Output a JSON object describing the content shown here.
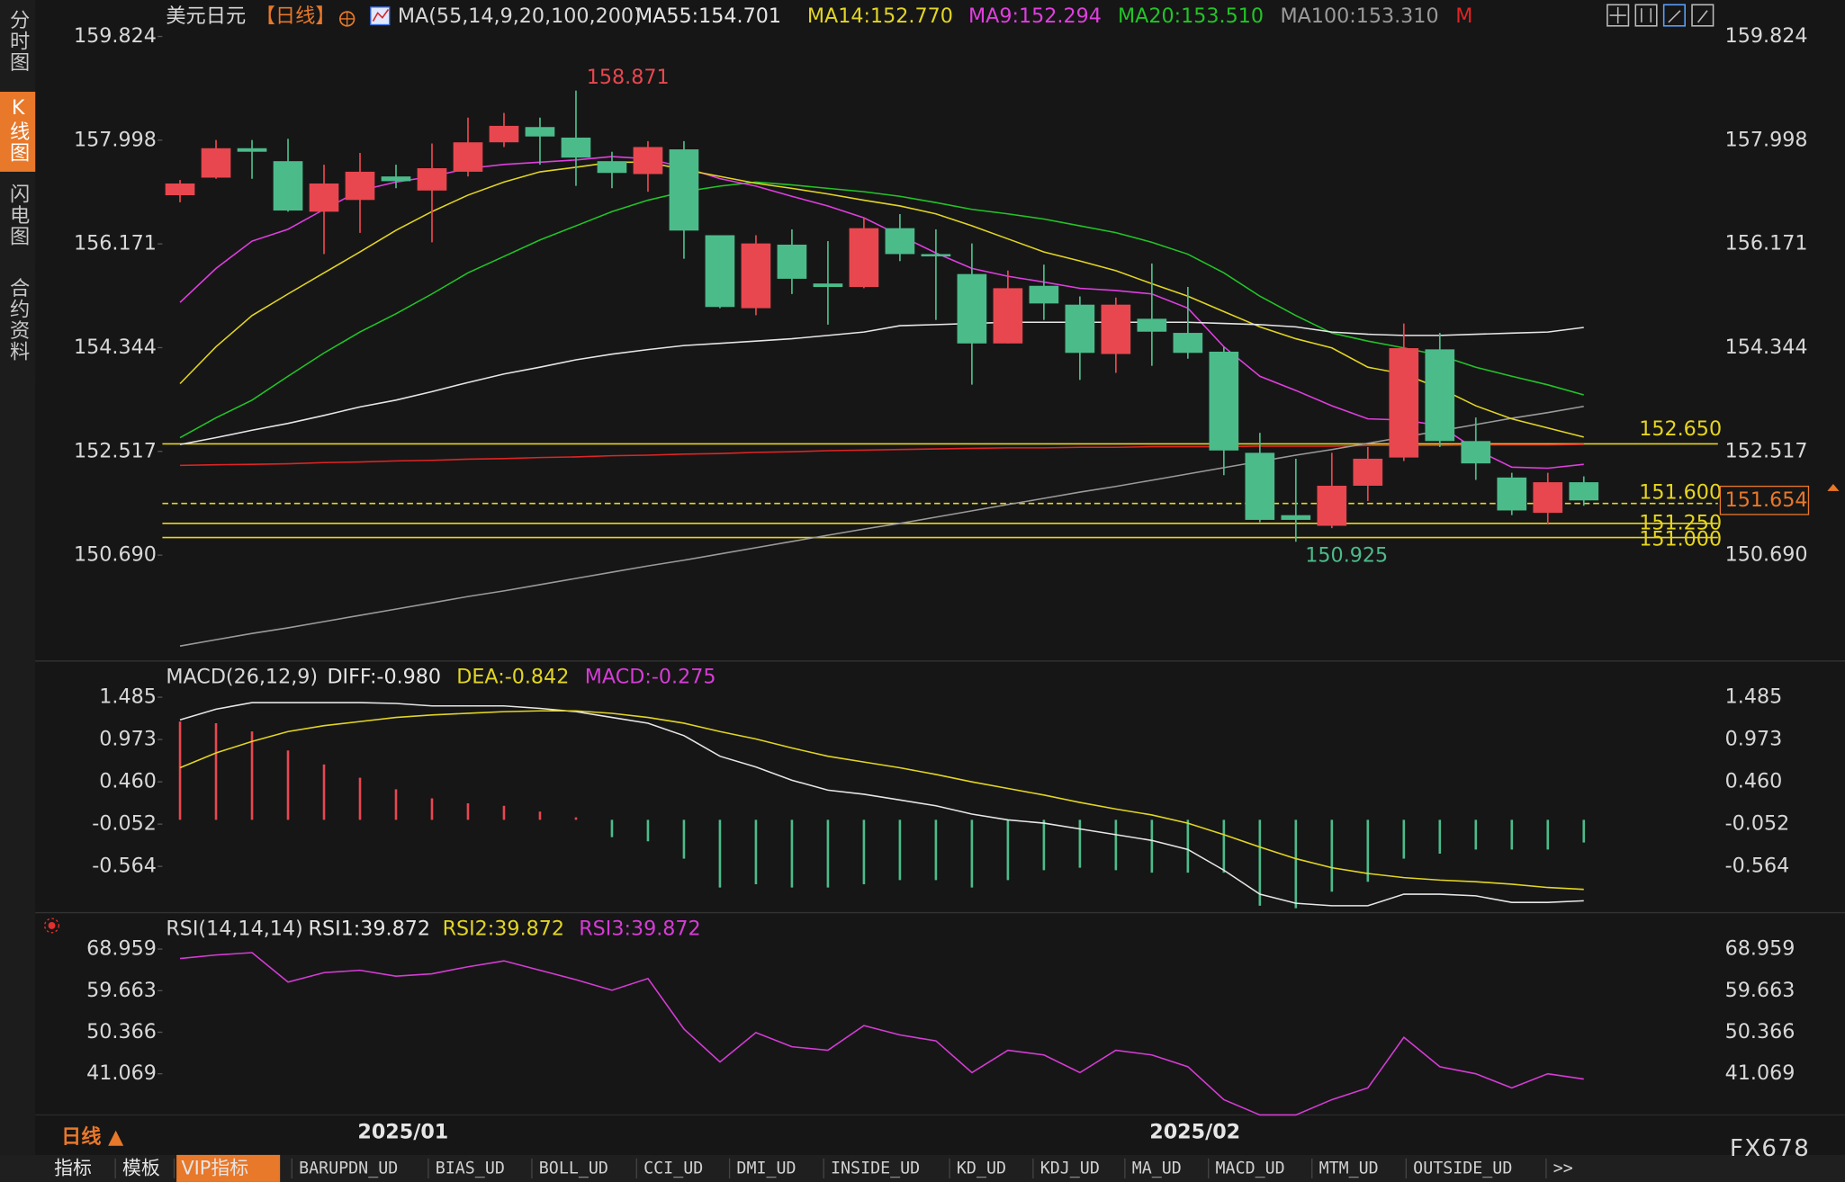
{
  "ui": {
    "tabs": [
      "分时图",
      "K线图",
      "闪电图",
      "合约资料"
    ],
    "active_tab": 1,
    "toolbar": [
      "指标",
      "模板",
      "VIP指标",
      "BARUPDN_UD",
      "BIAS_UD",
      "BOLL_UD",
      "CCI_UD",
      "DMI_UD",
      "INSIDE_UD",
      "KD_UD",
      "KDJ_UD",
      "MA_UD",
      "MACD_UD",
      "MTM_UD",
      "OUTSIDE_UD",
      ">>"
    ],
    "active_toolbar": 2,
    "timeframe": "日线 ▲",
    "watermark": "FX678"
  },
  "chart_data": [
    {
      "type": "candlestick",
      "title": "美元日元",
      "subtitle": "【日线】",
      "indicator": "MA(55,14,9,20,100,200)",
      "categories": [
        null,
        null,
        null,
        null,
        null,
        null,
        "2025/01",
        null,
        null,
        null,
        null,
        null,
        null,
        null,
        null,
        null,
        null,
        null,
        null,
        null,
        null,
        null,
        null,
        null,
        null,
        null,
        null,
        null,
        "2025/02",
        null,
        null,
        null,
        null,
        null,
        null,
        null,
        null,
        null,
        null,
        null
      ],
      "up_color": "#e8474f",
      "down_color": "#4cbb8a",
      "candles": {
        "open": [
          157.028,
          157.338,
          157.856,
          157.628,
          156.738,
          156.945,
          157.359,
          157.111,
          157.442,
          157.96,
          158.229,
          158.043,
          157.628,
          157.401,
          157.836,
          156.324,
          155.039,
          156.158,
          155.474,
          155.412,
          156.448,
          155.992,
          155.64,
          154.418,
          155.433,
          155.101,
          154.232,
          154.853,
          154.604,
          154.273,
          152.492,
          151.394,
          151.207,
          151.912,
          152.409,
          154.314,
          152.699,
          152.057,
          151.435,
          151.974
        ],
        "high": [
          157.297,
          158.001,
          158.001,
          158.022,
          157.566,
          157.773,
          157.566,
          157.939,
          158.395,
          158.478,
          158.395,
          158.871,
          157.794,
          157.981,
          157.981,
          156.324,
          156.324,
          156.427,
          156.22,
          156.634,
          156.696,
          156.427,
          156.179,
          155.702,
          155.806,
          155.246,
          155.226,
          155.826,
          155.412,
          154.356,
          152.844,
          152.388,
          152.492,
          152.595,
          154.77,
          154.604,
          153.113,
          152.14,
          152.14,
          152.077
        ],
        "low": [
          156.904,
          157.318,
          157.318,
          156.738,
          155.992,
          156.365,
          157.152,
          156.199,
          157.359,
          157.877,
          157.566,
          157.193,
          157.152,
          157.09,
          155.909,
          155.039,
          154.915,
          155.288,
          154.749,
          155.391,
          155.868,
          154.832,
          153.693,
          154.418,
          154.832,
          153.776,
          153.9,
          154.024,
          154.149,
          152.098,
          151.27,
          150.925,
          151.166,
          151.642,
          152.347,
          152.595,
          152.015,
          151.394,
          151.228,
          151.56
        ],
        "close": [
          157.235,
          157.856,
          157.794,
          156.759,
          157.235,
          157.442,
          157.276,
          157.504,
          157.96,
          158.25,
          158.063,
          157.691,
          157.421,
          157.877,
          156.406,
          155.06,
          156.179,
          155.557,
          155.412,
          156.448,
          155.992,
          155.951,
          154.418,
          155.391,
          155.122,
          154.252,
          155.101,
          154.625,
          154.252,
          152.533,
          151.311,
          151.311,
          151.912,
          152.388,
          154.335,
          152.699,
          152.305,
          151.477,
          151.974,
          151.654
        ]
      },
      "series": [
        {
          "name": "MA55",
          "legend_label": "MA55:154.701",
          "color": "#e6e6e6",
          "values": [
            152.64,
            152.76,
            152.89,
            153.01,
            153.15,
            153.3,
            153.42,
            153.57,
            153.73,
            153.88,
            154.0,
            154.13,
            154.23,
            154.31,
            154.38,
            154.42,
            154.46,
            154.5,
            154.56,
            154.62,
            154.73,
            154.75,
            154.77,
            154.79,
            154.79,
            154.79,
            154.79,
            154.79,
            154.79,
            154.77,
            154.75,
            154.71,
            154.62,
            154.58,
            154.56,
            154.56,
            154.58,
            154.6,
            154.62,
            154.7
          ]
        },
        {
          "name": "MA14",
          "legend_label": "MA14:152.770",
          "color": "#e2d523",
          "values": [
            153.71,
            154.36,
            154.91,
            155.29,
            155.66,
            156.03,
            156.41,
            156.74,
            157.03,
            157.26,
            157.44,
            157.52,
            157.61,
            157.61,
            157.48,
            157.36,
            157.24,
            157.15,
            157.05,
            156.94,
            156.84,
            156.7,
            156.49,
            156.26,
            156.03,
            155.87,
            155.7,
            155.47,
            155.25,
            154.98,
            154.71,
            154.5,
            154.34,
            154.0,
            153.88,
            153.63,
            153.32,
            153.09,
            152.93,
            152.77
          ]
        },
        {
          "name": "MA9",
          "legend_label": "MA9:152.294",
          "color": "#e03ee0",
          "values": [
            155.14,
            155.74,
            156.22,
            156.43,
            156.78,
            157.11,
            157.26,
            157.36,
            157.5,
            157.57,
            157.61,
            157.65,
            157.71,
            157.67,
            157.52,
            157.32,
            157.19,
            157.01,
            156.84,
            156.63,
            156.32,
            156.01,
            155.74,
            155.6,
            155.5,
            155.39,
            155.35,
            155.29,
            155.04,
            154.36,
            153.84,
            153.59,
            153.32,
            153.09,
            153.07,
            152.97,
            152.55,
            152.24,
            152.22,
            152.29
          ]
        },
        {
          "name": "MA20",
          "legend_label": "MA20:153.510",
          "color": "#22c427",
          "values": [
            152.76,
            153.11,
            153.42,
            153.84,
            154.25,
            154.62,
            154.94,
            155.29,
            155.66,
            155.95,
            156.24,
            156.49,
            156.74,
            156.94,
            157.09,
            157.19,
            157.26,
            157.21,
            157.15,
            157.09,
            157.01,
            156.9,
            156.78,
            156.7,
            156.61,
            156.49,
            156.37,
            156.2,
            155.99,
            155.66,
            155.25,
            154.91,
            154.6,
            154.46,
            154.34,
            154.21,
            154.0,
            153.84,
            153.69,
            153.51
          ]
        },
        {
          "name": "MA100",
          "legend_label": "MA100:153.310",
          "color": "#9a9a9a",
          "values": [
            149.09,
            149.2,
            149.31,
            149.41,
            149.52,
            149.63,
            149.74,
            149.85,
            149.96,
            150.06,
            150.17,
            150.28,
            150.39,
            150.5,
            150.6,
            150.71,
            150.82,
            150.93,
            151.04,
            151.15,
            151.25,
            151.36,
            151.47,
            151.58,
            151.69,
            151.8,
            151.9,
            152.01,
            152.12,
            152.23,
            152.34,
            152.45,
            152.55,
            152.66,
            152.77,
            152.88,
            152.99,
            153.1,
            153.2,
            153.31
          ]
        },
        {
          "name": "M",
          "legend_label": "M",
          "color": "#e02424",
          "values": [
            152.27,
            152.28,
            152.29,
            152.3,
            152.32,
            152.33,
            152.35,
            152.36,
            152.38,
            152.39,
            152.41,
            152.42,
            152.44,
            152.45,
            152.47,
            152.48,
            152.5,
            152.51,
            152.53,
            152.54,
            152.55,
            152.56,
            152.57,
            152.58,
            152.58,
            152.59,
            152.59,
            152.6,
            152.6,
            152.6,
            152.61,
            152.61,
            152.61,
            152.62,
            152.62,
            152.62,
            152.63,
            152.63,
            152.63,
            152.64
          ]
        }
      ],
      "levels": [
        {
          "value": 152.65,
          "label": "152.650"
        },
        {
          "value": 151.6,
          "label": "151.600",
          "dashed": true
        },
        {
          "value": 151.25,
          "label": "151.250"
        },
        {
          "value": 151.0,
          "label": "151.000"
        }
      ],
      "level_color": "#e6d51e",
      "ylim": [
        148.826,
        160.466
      ],
      "yticks": [
        159.824,
        157.998,
        156.171,
        154.344,
        152.517,
        {
          "value": 150.69,
          "label": "150.690"
        }
      ]
    },
    {
      "type": "macd",
      "title": "MACD(26,12,9)",
      "series": [
        {
          "name": "DIFF",
          "legend_label": "DIFF:-0.980",
          "color": "#e6e6e6",
          "values": [
            1.21,
            1.34,
            1.42,
            1.42,
            1.42,
            1.42,
            1.41,
            1.38,
            1.38,
            1.38,
            1.35,
            1.31,
            1.24,
            1.17,
            1.02,
            0.77,
            0.64,
            0.48,
            0.36,
            0.31,
            0.24,
            0.17,
            0.07,
            0,
            -0.04,
            -0.11,
            -0.18,
            -0.25,
            -0.36,
            -0.61,
            -0.9,
            -1.01,
            -1.04,
            -1.04,
            -0.9,
            -0.9,
            -0.92,
            -1.0,
            -1.0,
            -0.98
          ]
        },
        {
          "name": "DEA",
          "legend_label": "DEA:-0.842",
          "color": "#e2d523",
          "values": [
            0.63,
            0.81,
            0.95,
            1.07,
            1.14,
            1.19,
            1.24,
            1.27,
            1.29,
            1.31,
            1.32,
            1.32,
            1.29,
            1.24,
            1.17,
            1.07,
            0.98,
            0.87,
            0.77,
            0.7,
            0.63,
            0.55,
            0.46,
            0.38,
            0.3,
            0.21,
            0.13,
            0.06,
            -0.04,
            -0.18,
            -0.33,
            -0.47,
            -0.58,
            -0.65,
            -0.7,
            -0.73,
            -0.75,
            -0.78,
            -0.82,
            -0.842
          ]
        },
        {
          "name": "MACD",
          "legend_label": "MACD:-0.275",
          "color": "#d63cd6",
          "histogram": true,
          "up_color": "#e8474f",
          "down_color": "#4cbb8a",
          "values": [
            1.19,
            1.17,
            1.07,
            0.84,
            0.67,
            0.51,
            0.37,
            0.26,
            0.2,
            0.17,
            0.1,
            0.03,
            -0.21,
            -0.26,
            -0.47,
            -0.82,
            -0.78,
            -0.82,
            -0.82,
            -0.78,
            -0.73,
            -0.73,
            -0.82,
            -0.73,
            -0.61,
            -0.58,
            -0.61,
            -0.64,
            -0.64,
            -0.64,
            -1.04,
            -1.07,
            -0.87,
            -0.75,
            -0.47,
            -0.41,
            -0.36,
            -0.36,
            -0.36,
            -0.275
          ]
        }
      ],
      "ylim": [
        -1.11,
        1.81
      ],
      "yticks": [
        1.485,
        0.973,
        {
          "value": 0.46,
          "label": "0.460"
        },
        -0.052,
        -0.564
      ]
    },
    {
      "type": "line",
      "title": "RSI(14,14,14)",
      "legend": [
        {
          "label": "RSI1:39.872",
          "color": "#e6e6e6"
        },
        {
          "label": "RSI2:39.872",
          "color": "#e2d523"
        },
        {
          "label": "RSI3:39.872",
          "color": "#d63cd6"
        }
      ],
      "color": "#d63cd6",
      "values": [
        66.85,
        67.64,
        68.17,
        61.59,
        63.7,
        64.22,
        62.91,
        63.43,
        65.01,
        66.33,
        64.22,
        62.12,
        59.75,
        62.38,
        51.07,
        43.7,
        50.28,
        47.12,
        46.33,
        51.86,
        49.75,
        48.43,
        41.33,
        46.33,
        45.28,
        41.33,
        46.33,
        45.28,
        42.65,
        35.28,
        31.86,
        31.86,
        35.28,
        37.91,
        49.22,
        42.65,
        41.07,
        37.91,
        41.07,
        39.872
      ],
      "ylim": [
        28.7,
        76.06
      ],
      "yticks": [
        68.959,
        59.663,
        50.366,
        41.069
      ]
    }
  ]
}
